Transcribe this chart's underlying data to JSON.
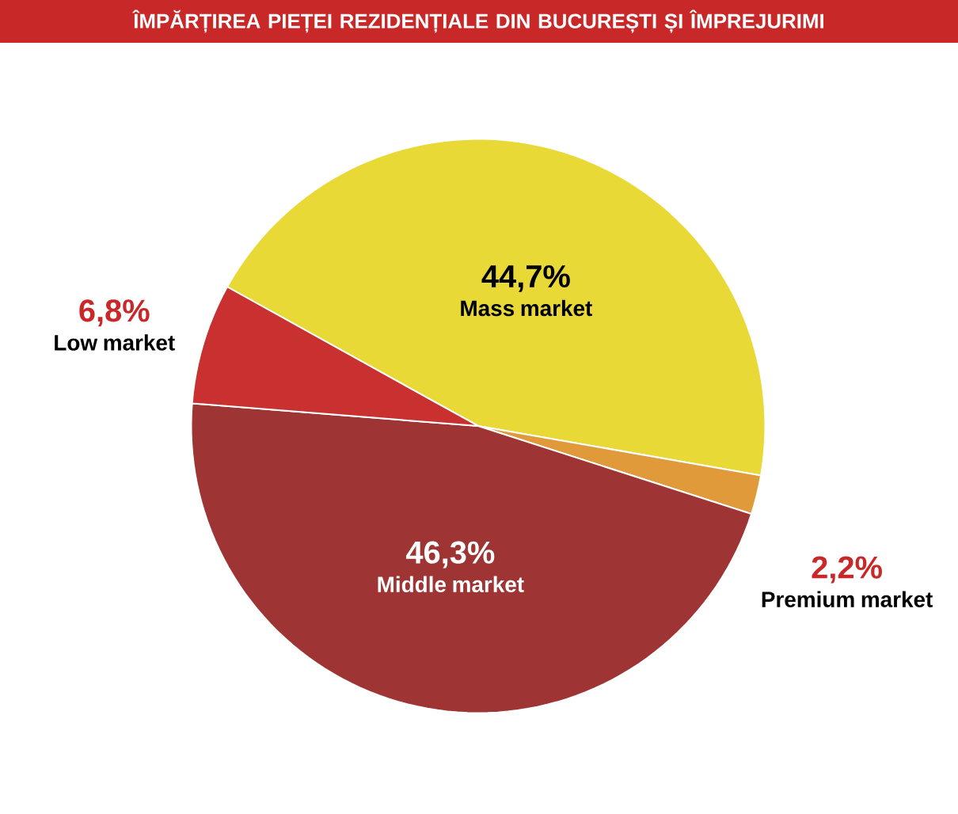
{
  "chart_data": {
    "type": "pie",
    "title": "ÎMPĂRȚIREA PIEȚEI REZIDENȚIALE DIN BUCUREȘTI ȘI ÎMPREJURIMI",
    "categories": [
      "Mass market",
      "Premium market",
      "Middle market",
      "Low market"
    ],
    "values": [
      44.7,
      2.2,
      46.3,
      6.8
    ],
    "value_labels": [
      "44,7%",
      "2,2%",
      "46,3%",
      "6,8%"
    ],
    "colors": [
      "#e8d936",
      "#e09a3a",
      "#9e3534",
      "#c8312f"
    ]
  }
}
